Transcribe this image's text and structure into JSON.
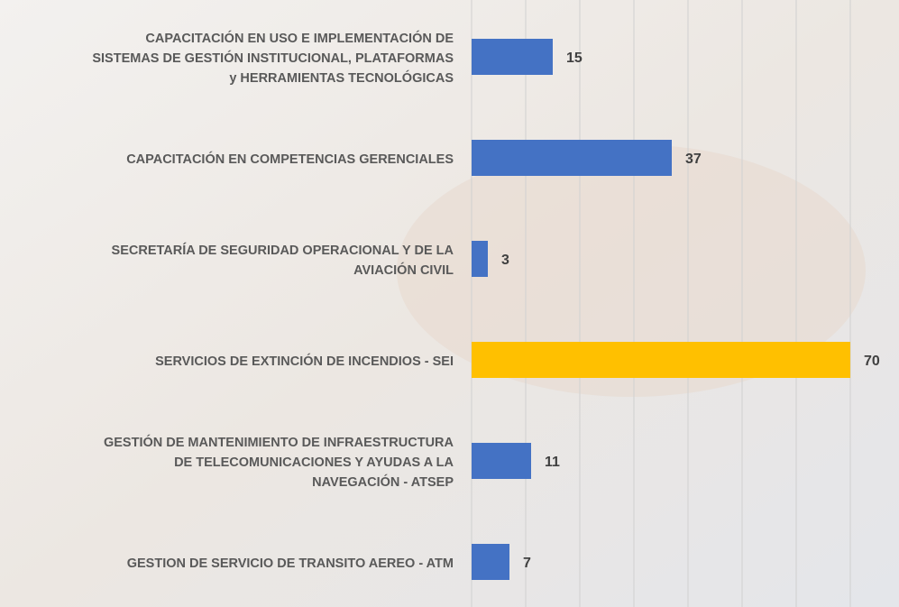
{
  "chart_data": {
    "type": "bar",
    "orientation": "horizontal",
    "categories": [
      "CAPACITACIÓN EN USO E IMPLEMENTACIÓN DE\nSISTEMAS DE GESTIÓN INSTITUCIONAL, PLATAFORMAS\ny HERRAMIENTAS TECNOLÓGICAS",
      "CAPACITACIÓN EN COMPETENCIAS GERENCIALES",
      "SECRETARÍA DE SEGURIDAD OPERACIONAL Y DE LA\nAVIACIÓN CIVIL",
      "SERVICIOS DE EXTINCIÓN DE INCENDIOS - SEI",
      "GESTIÓN DE MANTENIMIENTO DE INFRAESTRUCTURA\nDE TELECOMUNICACIONES Y AYUDAS A LA\nNAVEGACIÓN - ATSEP",
      "GESTION DE SERVICIO DE TRANSITO AEREO - ATM"
    ],
    "values": [
      15,
      37,
      3,
      70,
      11,
      7
    ],
    "colors": [
      "#4472c4",
      "#4472c4",
      "#4472c4",
      "#ffc000",
      "#4472c4",
      "#4472c4"
    ],
    "xlim": [
      0,
      70
    ],
    "xticks": [
      0,
      10,
      20,
      30,
      40,
      50,
      60,
      70
    ],
    "grid": true
  }
}
